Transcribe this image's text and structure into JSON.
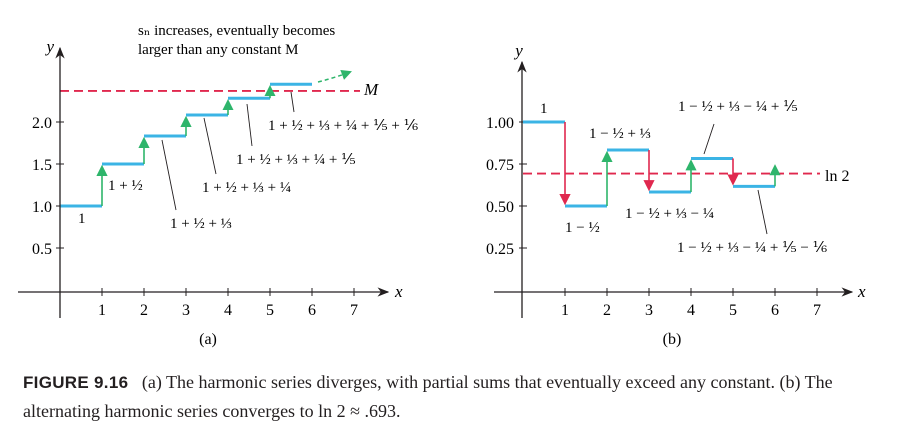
{
  "figure_label": "FIGURE 9.16",
  "caption_text": "(a) The harmonic series diverges, with partial sums that eventually exceed any constant. (b) The alternating harmonic series converges to ln 2 ≈ .693.",
  "colors": {
    "step": "#3bb4e5",
    "up_arrow": "#2eb56b",
    "down_arrow": "#e0284e",
    "dashed": "#e0284e",
    "axis": "#231f20"
  },
  "chart_data": [
    {
      "type": "line",
      "subtitle": "(a)",
      "xlabel": "x",
      "ylabel": "y",
      "xlim": [
        0,
        7
      ],
      "ylim": [
        0,
        2.6
      ],
      "xticks": [
        "1",
        "2",
        "3",
        "4",
        "5",
        "6",
        "7"
      ],
      "yticks": [
        "0.5",
        "1.0",
        "1.5",
        "2.0"
      ],
      "ytick_values": [
        0.5,
        1.0,
        1.5,
        2.0
      ],
      "steps": [
        {
          "x0": 0,
          "x1": 1,
          "y": 1.0
        },
        {
          "x0": 1,
          "x1": 2,
          "y": 1.5
        },
        {
          "x0": 2,
          "x1": 3,
          "y": 1.833
        },
        {
          "x0": 3,
          "x1": 4,
          "y": 2.083
        },
        {
          "x0": 4,
          "x1": 5,
          "y": 2.283
        },
        {
          "x0": 5,
          "x1": 6,
          "y": 2.45
        }
      ],
      "reference_line": {
        "y": 2.37,
        "label": "M"
      },
      "annotation_title": [
        "sₙ increases, eventually becomes",
        "larger than any constant M"
      ],
      "partial_sum_labels": [
        "1",
        "1 + ½",
        "1 + ½ + ⅓",
        "1 + ½ + ⅓ + ¼",
        "1 + ½ + ⅓ + ¼ + ⅕",
        "1 + ½ + ⅓ + ¼ + ⅕ + ⅙"
      ]
    },
    {
      "type": "line",
      "subtitle": "(b)",
      "xlabel": "x",
      "ylabel": "y",
      "xlim": [
        0,
        7
      ],
      "ylim": [
        0,
        1.2
      ],
      "xticks": [
        "1",
        "2",
        "3",
        "4",
        "5",
        "6",
        "7"
      ],
      "yticks": [
        "0.25",
        "0.50",
        "0.75",
        "1.00"
      ],
      "ytick_values": [
        0.25,
        0.5,
        0.75,
        1.0
      ],
      "steps": [
        {
          "x0": 0,
          "x1": 1,
          "y": 1.0
        },
        {
          "x0": 1,
          "x1": 2,
          "y": 0.5
        },
        {
          "x0": 2,
          "x1": 3,
          "y": 0.833
        },
        {
          "x0": 3,
          "x1": 4,
          "y": 0.583
        },
        {
          "x0": 4,
          "x1": 5,
          "y": 0.783
        },
        {
          "x0": 5,
          "x1": 6,
          "y": 0.617
        }
      ],
      "reference_line": {
        "y": 0.693,
        "label": "ln 2"
      },
      "partial_sum_labels": [
        "1",
        "1 − ½",
        "1 − ½ + ⅓",
        "1 − ½ + ⅓ − ¼",
        "1 − ½ + ⅓ − ¼ + ⅕",
        "1 − ½ + ⅓ − ¼ + ⅕ − ⅙"
      ]
    }
  ]
}
